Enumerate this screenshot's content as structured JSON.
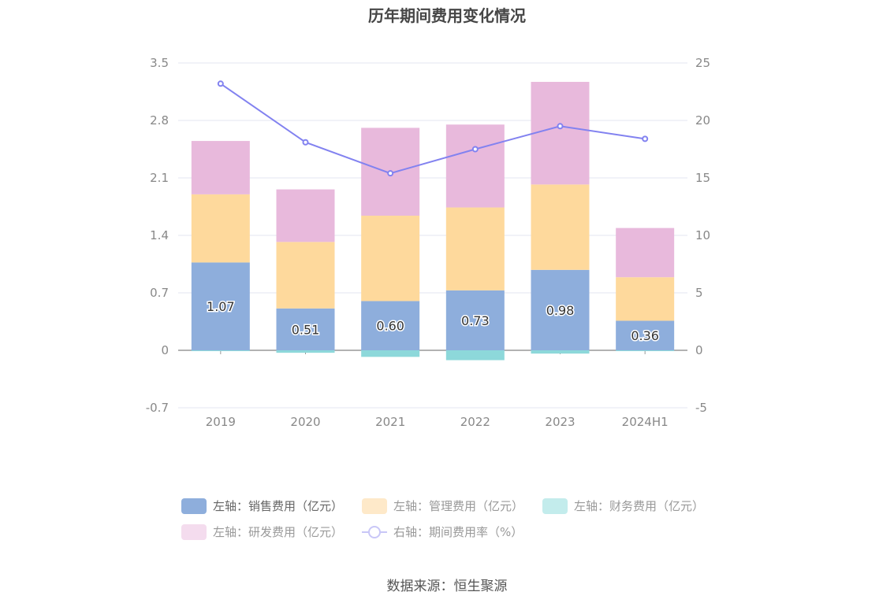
{
  "chart_data": {
    "type": "bar",
    "title": "历年期间费用变化情况",
    "categories": [
      "2019",
      "2020",
      "2021",
      "2022",
      "2023",
      "2024H1"
    ],
    "left_axis": {
      "min": -0.7,
      "max": 3.5,
      "ticks": [
        "3.5",
        "2.8",
        "2.1",
        "1.4",
        "0.7",
        "0",
        "-0.7"
      ]
    },
    "right_axis": {
      "min": -5,
      "max": 25,
      "ticks": [
        "25",
        "20",
        "15",
        "10",
        "5",
        "0",
        "-5"
      ]
    },
    "series": [
      {
        "name": "左轴：销售费用（亿元）",
        "type": "bar",
        "stack": true,
        "axis": "left",
        "color": "#8eaedc",
        "values": [
          1.07,
          0.51,
          0.6,
          0.73,
          0.98,
          0.36
        ],
        "labels": [
          "1.07",
          "0.51",
          "0.60",
          "0.73",
          "0.98",
          "0.36"
        ]
      },
      {
        "name": "左轴：管理费用（亿元）",
        "type": "bar",
        "stack": true,
        "axis": "left",
        "color": "#fed99c",
        "values": [
          0.83,
          0.81,
          1.04,
          1.01,
          1.04,
          0.53
        ]
      },
      {
        "name": "左轴：财务费用（亿元）",
        "type": "bar",
        "stack": true,
        "axis": "left",
        "color": "#8dd8da",
        "values": [
          -0.01,
          -0.03,
          -0.08,
          -0.12,
          -0.04,
          -0.01
        ]
      },
      {
        "name": "左轴：研发费用（亿元）",
        "type": "bar",
        "stack": true,
        "axis": "left",
        "color": "#e8b9dc",
        "values": [
          0.65,
          0.64,
          1.07,
          1.01,
          1.25,
          0.6
        ]
      },
      {
        "name": "右轴：期间费用率（%）",
        "type": "line",
        "axis": "right",
        "color": "#8282f0",
        "values": [
          23.2,
          18.1,
          15.4,
          17.5,
          19.5,
          18.4
        ]
      }
    ],
    "legend": {
      "position": "bottom",
      "visible_series": [
        0
      ]
    },
    "grid": true
  },
  "source": "数据来源：恒生聚源"
}
